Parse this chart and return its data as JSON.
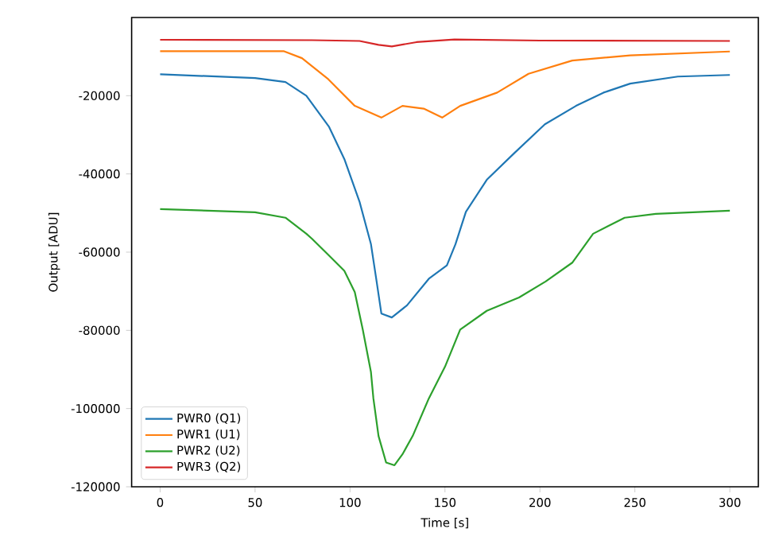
{
  "chart_data": {
    "type": "line",
    "xlabel": "Time [s]",
    "ylabel": "Output [ADU]",
    "xlim": [
      -15,
      315
    ],
    "ylim": [
      -120000,
      0
    ],
    "xticks": [
      0,
      50,
      100,
      150,
      200,
      250,
      300
    ],
    "yticks": [
      -120000,
      -100000,
      -80000,
      -60000,
      -40000,
      -20000
    ],
    "legend": "bottom left",
    "grid": false,
    "line_style": "solid",
    "series": [
      {
        "name": "PWR0 (Q1)",
        "color": "#1f77b4",
        "x": [
          0,
          50,
          66,
          77,
          89,
          97,
          105,
          111,
          114,
          116.5,
          122,
          130,
          141.5,
          151,
          155.5,
          161,
          172,
          186,
          202.6,
          219,
          233.5,
          247.5,
          272.6,
          300
        ],
        "values": [
          -14500,
          -15500,
          -16500,
          -20000,
          -28000,
          -36200,
          -47100,
          -57900,
          -67500,
          -75700,
          -76700,
          -73600,
          -66800,
          -63400,
          -58000,
          -49700,
          -41500,
          -34900,
          -27300,
          -22600,
          -19200,
          -16900,
          -15100,
          -14700
        ]
      },
      {
        "name": "PWR1 (U1)",
        "color": "#ff7f0e",
        "x": [
          0,
          65,
          74.7,
          88.6,
          102.5,
          116.5,
          127.6,
          138.8,
          148.5,
          158,
          177.5,
          194,
          217,
          247.5,
          300
        ],
        "values": [
          -8600,
          -8600,
          -10400,
          -15800,
          -22600,
          -25600,
          -22600,
          -23300,
          -25600,
          -22600,
          -19200,
          -14400,
          -11000,
          -9700,
          -8700
        ]
      },
      {
        "name": "PWR2 (U2)",
        "color": "#2ca02c",
        "x": [
          0,
          50,
          66,
          77,
          80,
          88.6,
          97,
          102.5,
          106.7,
          111,
          112.3,
          115,
          119,
          123.4,
          127.6,
          133,
          141.5,
          150,
          158,
          172,
          189,
          203,
          217,
          228,
          244.6,
          261,
          300
        ],
        "values": [
          -49000,
          -49800,
          -51200,
          -55300,
          -56600,
          -60700,
          -64800,
          -70200,
          -79800,
          -90600,
          -97400,
          -107000,
          -113800,
          -114500,
          -111700,
          -107000,
          -97400,
          -89300,
          -79800,
          -75000,
          -71600,
          -67500,
          -62700,
          -55300,
          -51200,
          -50200,
          -49400
        ]
      },
      {
        "name": "PWR3 (Q2)",
        "color": "#d62728",
        "x": [
          0,
          80,
          105,
          115,
          122,
          135,
          155,
          200,
          300
        ],
        "values": [
          -5700,
          -5800,
          -6000,
          -7000,
          -7400,
          -6300,
          -5600,
          -5900,
          -6000
        ]
      }
    ]
  }
}
